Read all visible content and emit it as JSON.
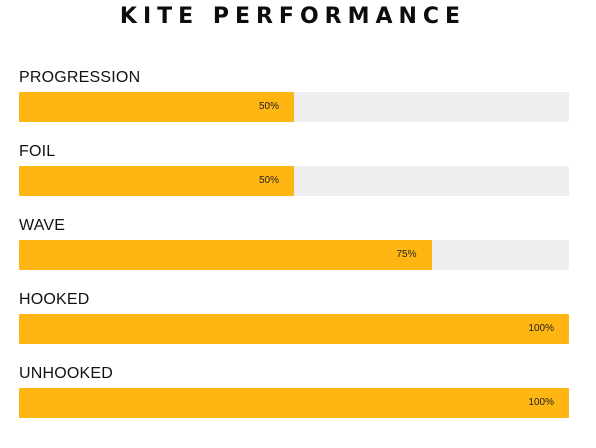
{
  "title": "KITE PERFORMANCE",
  "colors": {
    "fill": "#ffb612",
    "track": "#eeeeee"
  },
  "skills": [
    {
      "label": "PROGRESSION",
      "percent": 50,
      "value_text": "50%"
    },
    {
      "label": "FOIL",
      "percent": 50,
      "value_text": "50%"
    },
    {
      "label": "WAVE",
      "percent": 75,
      "value_text": "75%"
    },
    {
      "label": "HOOKED",
      "percent": 100,
      "value_text": "100%"
    },
    {
      "label": "UNHOOKED",
      "percent": 100,
      "value_text": "100%"
    }
  ]
}
